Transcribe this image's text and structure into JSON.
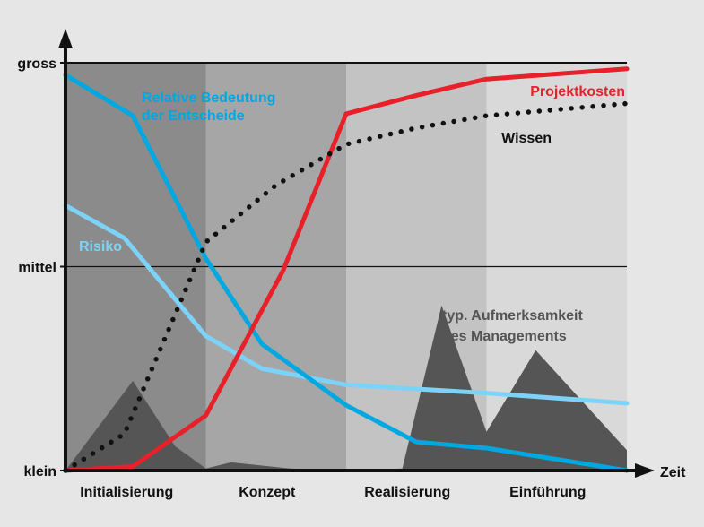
{
  "chart_data": {
    "type": "line",
    "x_axis": {
      "label": "Zeit",
      "phases": [
        "Initialisierung",
        "Konzept",
        "Realisierung",
        "Einführung"
      ]
    },
    "y_axis": {
      "levels": [
        "klein",
        "mittel",
        "gross"
      ],
      "ylim": [
        0,
        1
      ]
    },
    "xlim": [
      0,
      4
    ],
    "grid": "horizontal line at mittel",
    "series": [
      {
        "name": "Relative Bedeutung der Entscheide",
        "label_lines": [
          "Relative Bedeutung",
          "der Entscheide"
        ],
        "style": "solid",
        "color": "#00a8e2",
        "points": [
          [
            0,
            0.97
          ],
          [
            0.48,
            0.87
          ],
          [
            1.0,
            0.52
          ],
          [
            1.4,
            0.31
          ],
          [
            2.0,
            0.16
          ],
          [
            2.5,
            0.07
          ],
          [
            3.0,
            0.055
          ],
          [
            4.0,
            0.0
          ]
        ]
      },
      {
        "name": "Risiko",
        "label_lines": [
          "Risiko"
        ],
        "style": "solid",
        "color": "#7dd3f7",
        "points": [
          [
            0,
            0.65
          ],
          [
            0.42,
            0.57
          ],
          [
            1.0,
            0.33
          ],
          [
            1.4,
            0.25
          ],
          [
            2.0,
            0.21
          ],
          [
            3.0,
            0.19
          ],
          [
            4.0,
            0.165
          ]
        ]
      },
      {
        "name": "Projektkosten",
        "label_lines": [
          "Projektkosten"
        ],
        "style": "solid",
        "color": "#e8202a",
        "points": [
          [
            0,
            0.0
          ],
          [
            0.48,
            0.01
          ],
          [
            1.0,
            0.135
          ],
          [
            1.55,
            0.49
          ],
          [
            2.0,
            0.875
          ],
          [
            2.5,
            0.92
          ],
          [
            3.0,
            0.96
          ],
          [
            4.0,
            0.985
          ]
        ]
      },
      {
        "name": "Wissen",
        "label_lines": [
          "Wissen"
        ],
        "style": "dotted",
        "color": "#111111",
        "points": [
          [
            0,
            0.0
          ],
          [
            0.42,
            0.09
          ],
          [
            1.0,
            0.56
          ],
          [
            1.5,
            0.7
          ],
          [
            2.0,
            0.8
          ],
          [
            2.5,
            0.84
          ],
          [
            3.0,
            0.87
          ],
          [
            4.0,
            0.9
          ]
        ]
      },
      {
        "name": "typ. Aufmerksamkeit des Managements",
        "label_lines": [
          "typ. Aufmerksamkeit",
          "des Managements"
        ],
        "style": "area",
        "color": "#555555",
        "points": [
          [
            0,
            0.0
          ],
          [
            0.48,
            0.22
          ],
          [
            0.78,
            0.06
          ],
          [
            1.0,
            0.005
          ],
          [
            1.18,
            0.02
          ],
          [
            1.6,
            0.005
          ],
          [
            2.0,
            0.0
          ],
          [
            2.4,
            0.005
          ],
          [
            2.68,
            0.405
          ],
          [
            3.0,
            0.095
          ],
          [
            3.35,
            0.295
          ],
          [
            4.0,
            0.05
          ],
          [
            4.0,
            0.0
          ]
        ]
      }
    ],
    "phase_shading": [
      "#8b8b8b",
      "#a6a6a6",
      "#c3c3c3",
      "#d9d9d9"
    ],
    "axis_color": "#111111"
  }
}
